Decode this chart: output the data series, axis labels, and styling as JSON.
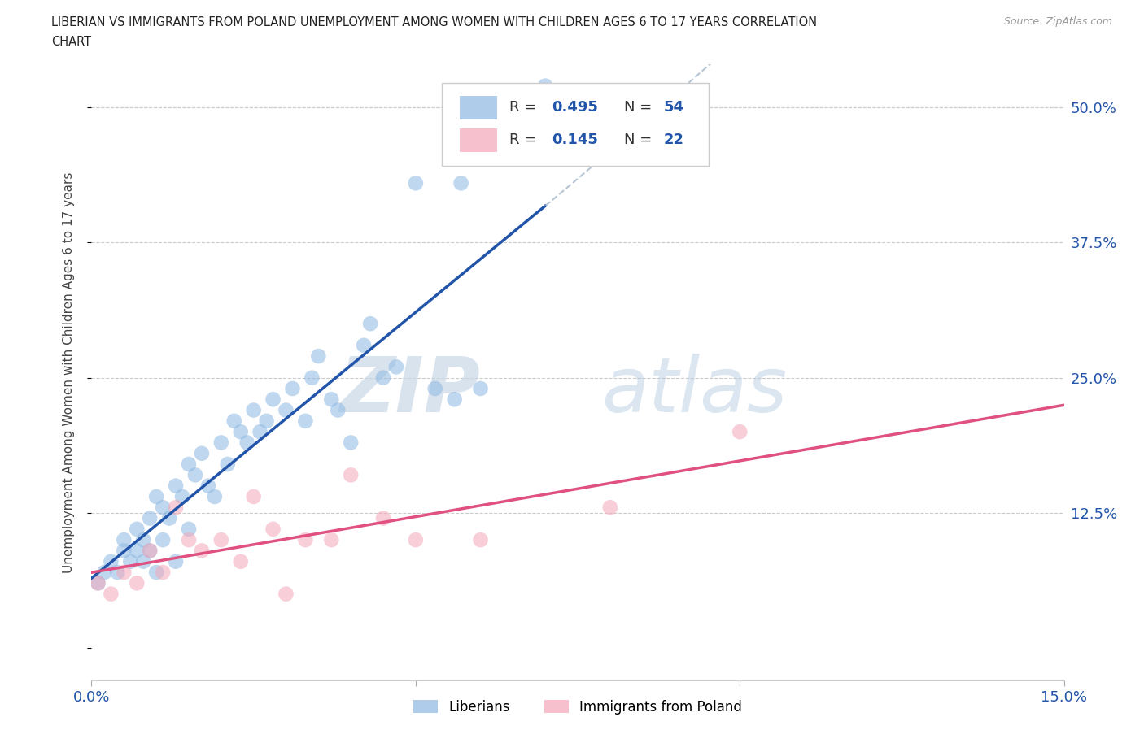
{
  "title_line1": "LIBERIAN VS IMMIGRANTS FROM POLAND UNEMPLOYMENT AMONG WOMEN WITH CHILDREN AGES 6 TO 17 YEARS CORRELATION",
  "title_line2": "CHART",
  "source_text": "Source: ZipAtlas.com",
  "ylabel": "Unemployment Among Women with Children Ages 6 to 17 years",
  "xlim": [
    0.0,
    0.15
  ],
  "ylim": [
    -0.03,
    0.54
  ],
  "ytick_positions": [
    0.0,
    0.125,
    0.25,
    0.375,
    0.5
  ],
  "ytick_right_labels": [
    "",
    "12.5%",
    "25.0%",
    "37.5%",
    "50.0%"
  ],
  "xtick_positions": [
    0.0,
    0.05,
    0.1,
    0.15
  ],
  "xtick_labels": [
    "0.0%",
    "",
    "",
    "15.0%"
  ],
  "blue_scatter_color": "#8DB8E2",
  "pink_scatter_color": "#F4A6B8",
  "blue_line_color": "#2255AA",
  "pink_line_color": "#E05080",
  "dash_color": "#AABBCC",
  "label_color": "#2255AA",
  "grid_color": "#CCCCCC",
  "legend_r1": "0.495",
  "legend_n1": "54",
  "legend_r2": "0.145",
  "legend_n2": "22",
  "lib_label": "Liberians",
  "pol_label": "Immigrants from Poland",
  "liberian_x": [
    0.001,
    0.002,
    0.003,
    0.004,
    0.005,
    0.005,
    0.006,
    0.007,
    0.007,
    0.008,
    0.008,
    0.009,
    0.009,
    0.01,
    0.01,
    0.011,
    0.011,
    0.012,
    0.013,
    0.013,
    0.014,
    0.015,
    0.015,
    0.016,
    0.017,
    0.018,
    0.019,
    0.02,
    0.021,
    0.022,
    0.023,
    0.024,
    0.025,
    0.026,
    0.027,
    0.028,
    0.03,
    0.031,
    0.033,
    0.034,
    0.035,
    0.037,
    0.038,
    0.04,
    0.042,
    0.043,
    0.045,
    0.047,
    0.05,
    0.053,
    0.056,
    0.057,
    0.06,
    0.07
  ],
  "liberian_y": [
    0.06,
    0.07,
    0.08,
    0.07,
    0.1,
    0.09,
    0.08,
    0.11,
    0.09,
    0.1,
    0.08,
    0.12,
    0.09,
    0.14,
    0.07,
    0.13,
    0.1,
    0.12,
    0.15,
    0.08,
    0.14,
    0.17,
    0.11,
    0.16,
    0.18,
    0.15,
    0.14,
    0.19,
    0.17,
    0.21,
    0.2,
    0.19,
    0.22,
    0.2,
    0.21,
    0.23,
    0.22,
    0.24,
    0.21,
    0.25,
    0.27,
    0.23,
    0.22,
    0.19,
    0.28,
    0.3,
    0.25,
    0.26,
    0.43,
    0.24,
    0.23,
    0.43,
    0.24,
    0.52
  ],
  "poland_x": [
    0.001,
    0.003,
    0.005,
    0.007,
    0.009,
    0.011,
    0.013,
    0.015,
    0.017,
    0.02,
    0.023,
    0.025,
    0.028,
    0.03,
    0.033,
    0.037,
    0.04,
    0.045,
    0.05,
    0.06,
    0.08,
    0.1
  ],
  "poland_y": [
    0.06,
    0.05,
    0.07,
    0.06,
    0.09,
    0.07,
    0.13,
    0.1,
    0.09,
    0.1,
    0.08,
    0.14,
    0.11,
    0.05,
    0.1,
    0.1,
    0.16,
    0.12,
    0.1,
    0.1,
    0.13,
    0.2
  ]
}
